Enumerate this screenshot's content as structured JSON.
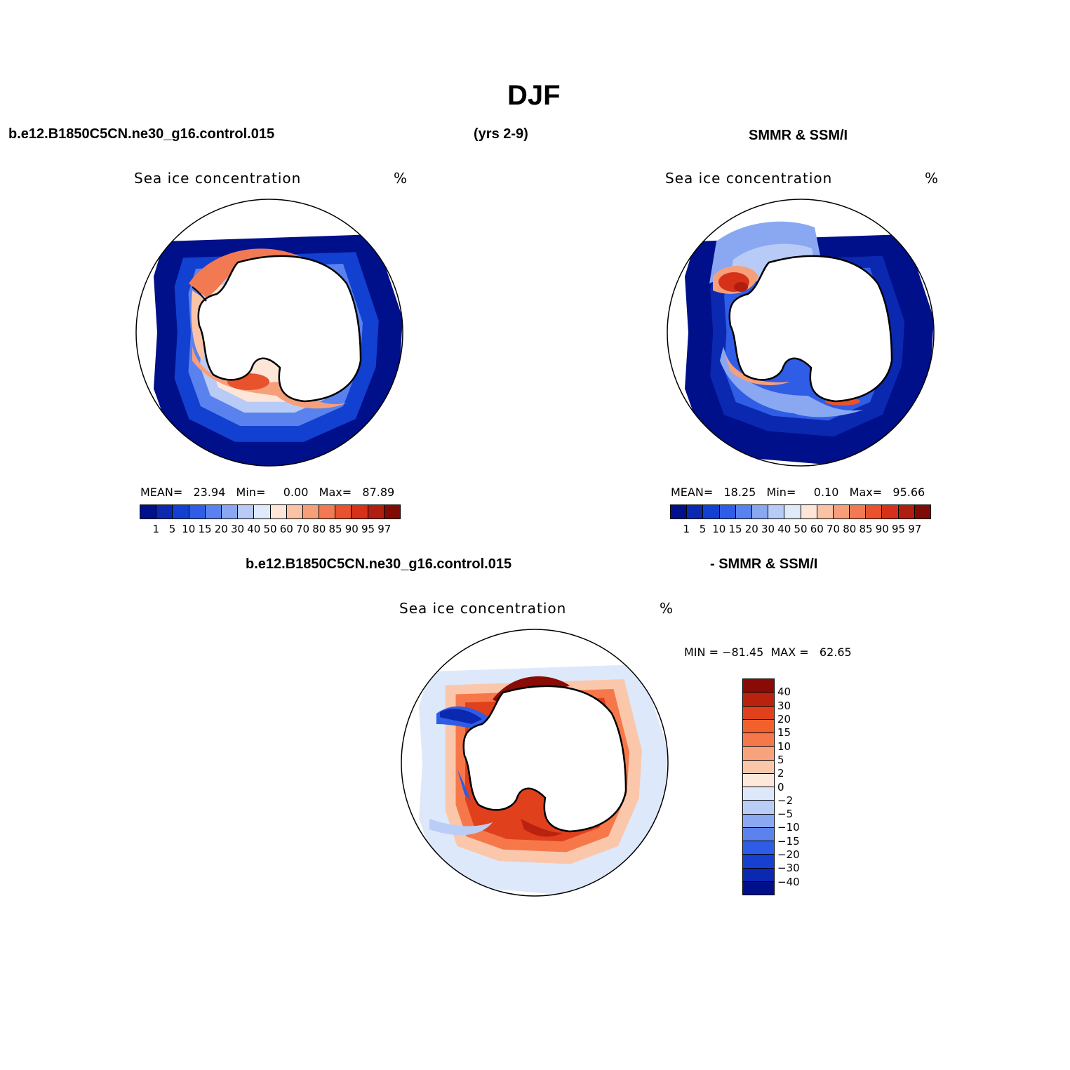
{
  "figure": {
    "title": "DJF",
    "case_name": "b.e12.B1850C5CN.ne30_g16.control.015",
    "years": "(yrs 2-9)",
    "obs_name": "SMMR & SSM/I",
    "diff_case_name": "b.e12.B1850C5CN.ne30_g16.control.015",
    "diff_obs_name": "- SMMR & SSM/I"
  },
  "panels": [
    {
      "id": "model",
      "title": "Sea ice concentration",
      "units": "%",
      "stats_text": "MEAN=   23.94   Min=     0.00   Max=   87.89",
      "stats": {
        "mean": 23.94,
        "min": 0.0,
        "max": 87.89
      }
    },
    {
      "id": "obs",
      "title": "Sea ice concentration",
      "units": "%",
      "stats_text": "MEAN=   18.25   Min=     0.10   Max=   95.66",
      "stats": {
        "mean": 18.25,
        "min": 0.1,
        "max": 95.66
      }
    },
    {
      "id": "diff",
      "title": "Sea ice concentration",
      "units": "%",
      "minmax_text": "MIN = −81.45  MAX =   62.65",
      "stats": {
        "min": -81.45,
        "max": 62.65
      }
    }
  ],
  "colorbar_conc": {
    "levels": [
      "1",
      "5",
      "10",
      "15",
      "20",
      "30",
      "40",
      "50",
      "60",
      "70",
      "80",
      "85",
      "90",
      "95",
      "97"
    ],
    "colors": [
      "#00108a",
      "#0a28b0",
      "#1240d0",
      "#2f5de6",
      "#5a82ee",
      "#8aa8f2",
      "#b7cbf6",
      "#dfeafb",
      "#fde6d8",
      "#fbc3a6",
      "#f79f7b",
      "#f17a52",
      "#e8522c",
      "#d6321a",
      "#b01e10",
      "#800a06"
    ]
  },
  "colorbar_diff": {
    "levels": [
      "40",
      "30",
      "20",
      "15",
      "10",
      "5",
      "2",
      "0",
      "−2",
      "−5",
      "−10",
      "−15",
      "−20",
      "−30",
      "−40"
    ],
    "colors": [
      "#8a0a06",
      "#b8220f",
      "#e0401c",
      "#f2612c",
      "#f6784a",
      "#f8a27e",
      "#fbc7ab",
      "#fde8dc",
      "#dde9fb",
      "#b9cdf6",
      "#8ba8f2",
      "#5b83ee",
      "#2e5ce6",
      "#1640d0",
      "#0a28b0",
      "#00108a"
    ]
  },
  "map_colors": {
    "deep_blue": "#00108a",
    "mid_blue": "#1240d0",
    "light_blue": "#8aa8f2",
    "pale_blue": "#dfeafb",
    "pale_red": "#fde6d8",
    "light_red": "#f79f7b",
    "red": "#e8522c",
    "dark_red": "#b01e10",
    "land": "#ffffff"
  }
}
